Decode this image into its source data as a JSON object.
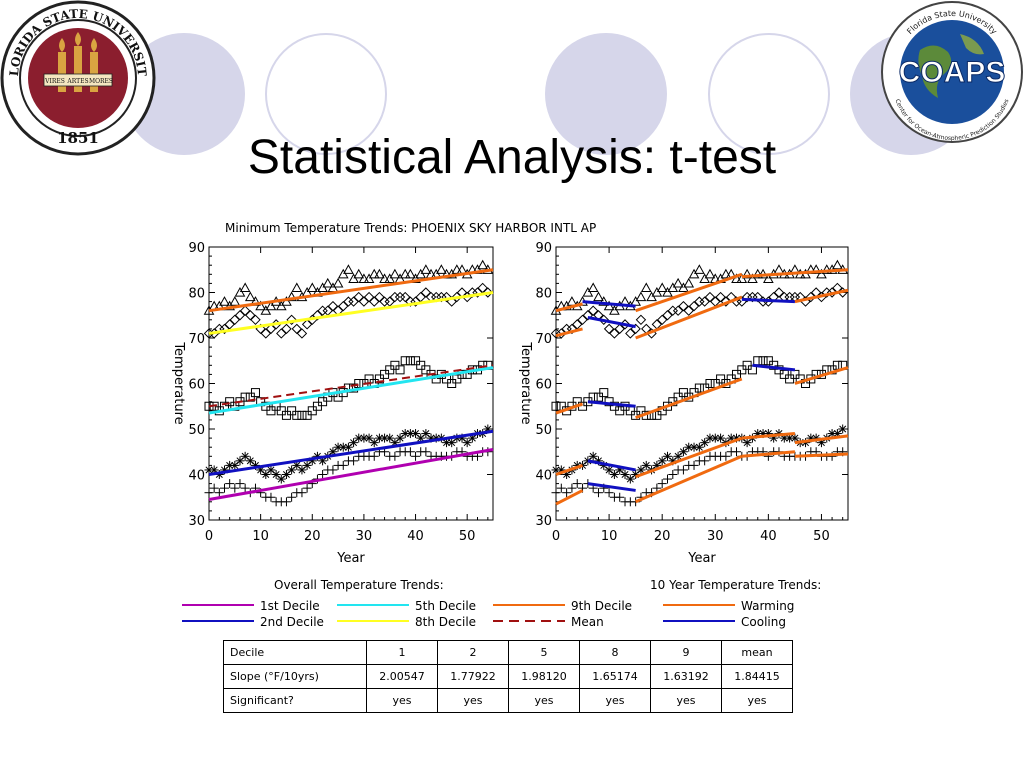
{
  "slide": {
    "title": "Statistical Analysis: t-test"
  },
  "logos": {
    "fsu": {
      "top_text": "FLORIDA STATE UNIVERSITY",
      "year": "1851",
      "motto": [
        "VIRES",
        "ARTES",
        "MORES"
      ]
    },
    "coaps": {
      "name": "COAPS",
      "ring_top": "Florida State University",
      "ring_bottom": "Center for Ocean-Atmospheric Prediction Studies"
    }
  },
  "figure_title": "Minimum Temperature Trends: PHOENIX SKY HARBOR INTL AP",
  "colors": {
    "deep": "#1a1aff",
    "first": "#b000b0",
    "second": "#1010c0",
    "fifth": "#22e5f0",
    "eighth": "#ffff22",
    "ninth": "#f06a10",
    "mean": "#a01010",
    "warming": "#f06a10",
    "cooling": "#1010c0",
    "accent_circle": "#d6d6ea"
  },
  "chart_data": [
    {
      "type": "scatter",
      "panel": "Overall Temperature Trends",
      "xlabel": "Year",
      "ylabel": "Temperature",
      "xlim": [
        0,
        55
      ],
      "ylim": [
        30,
        90
      ],
      "xticks": [
        "0",
        "10",
        "20",
        "30",
        "40",
        "50"
      ],
      "yticks": [
        "30",
        "40",
        "50",
        "60",
        "70",
        "80",
        "90"
      ],
      "grid": false,
      "series": [
        {
          "name": "9th Decile",
          "marker": "triangle",
          "values": [
            76,
            77,
            77,
            78,
            77,
            78,
            80,
            81,
            79,
            78,
            77,
            76,
            77,
            78,
            77,
            78,
            79,
            81,
            79,
            80,
            81,
            80,
            81,
            82,
            81,
            82,
            84,
            85,
            83,
            84,
            83,
            83,
            84,
            84,
            83,
            83,
            84,
            83,
            84,
            84,
            83,
            84,
            85,
            84,
            84,
            85,
            84,
            84,
            85,
            85,
            84,
            85,
            85,
            86,
            85
          ],
          "trend": {
            "color": "ninth",
            "from": [
              0,
              76
            ],
            "to": [
              55,
              85
            ]
          }
        },
        {
          "name": "8th Decile",
          "marker": "diamond",
          "values": [
            71,
            71,
            72,
            72,
            73,
            74,
            75,
            76,
            75,
            74,
            72,
            71,
            72,
            73,
            71,
            72,
            74,
            72,
            71,
            73,
            74,
            75,
            76,
            76,
            77,
            76,
            77,
            78,
            78,
            79,
            78,
            79,
            78,
            79,
            78,
            78,
            79,
            79,
            79,
            78,
            78,
            79,
            80,
            79,
            79,
            79,
            79,
            78,
            79,
            80,
            79,
            80,
            80,
            81,
            80
          ],
          "trend": {
            "color": "eighth",
            "from": [
              0,
              71
            ],
            "to": [
              55,
              80
            ]
          }
        },
        {
          "name": "5th Decile",
          "marker": "square",
          "values": [
            55,
            55,
            54,
            55,
            56,
            55,
            56,
            57,
            57,
            58,
            56,
            55,
            54,
            55,
            54,
            53,
            54,
            53,
            53,
            53,
            54,
            55,
            56,
            57,
            58,
            57,
            58,
            59,
            59,
            60,
            60,
            61,
            60,
            61,
            62,
            63,
            64,
            63,
            65,
            65,
            65,
            64,
            63,
            62,
            61,
            62,
            61,
            60,
            61,
            62,
            62,
            63,
            63,
            64,
            64
          ],
          "trend": {
            "color": "fifth",
            "from": [
              0,
              53.5
            ],
            "to": [
              55,
              63.5
            ]
          }
        },
        {
          "name": "2nd Decile",
          "marker": "asterisk",
          "values": [
            41,
            41,
            40,
            41,
            42,
            42,
            43,
            44,
            43,
            42,
            41,
            40,
            41,
            40,
            39,
            40,
            41,
            42,
            41,
            42,
            43,
            44,
            43,
            44,
            45,
            46,
            46,
            46,
            47,
            48,
            48,
            48,
            47,
            48,
            48,
            48,
            47,
            48,
            49,
            49,
            49,
            48,
            49,
            48,
            48,
            48,
            47,
            47,
            48,
            48,
            47,
            48,
            49,
            49,
            50
          ],
          "trend": {
            "color": "second",
            "from": [
              0,
              40
            ],
            "to": [
              55,
              49.5
            ]
          }
        },
        {
          "name": "1st Decile",
          "marker": "plus",
          "values": [
            36,
            37,
            36,
            37,
            38,
            37,
            38,
            37,
            36,
            37,
            36,
            35,
            35,
            34,
            34,
            34,
            35,
            36,
            36,
            37,
            38,
            39,
            40,
            41,
            41,
            42,
            42,
            43,
            43,
            44,
            44,
            44,
            44,
            45,
            45,
            44,
            44,
            45,
            45,
            45,
            44,
            45,
            45,
            44,
            44,
            44,
            44,
            44,
            45,
            45,
            44,
            44,
            44,
            45,
            45
          ],
          "trend": {
            "color": "first",
            "from": [
              0,
              34.5
            ],
            "to": [
              55,
              45.5
            ]
          }
        }
      ],
      "mean_trend": {
        "from": [
          0,
          55
        ],
        "to": [
          55,
          64
        ]
      }
    },
    {
      "type": "scatter",
      "panel": "10 Year Temperature Trends",
      "xlabel": "Year",
      "ylabel": "Temperature",
      "xlim": [
        0,
        55
      ],
      "ylim": [
        30,
        90
      ],
      "xticks": [
        "0",
        "10",
        "20",
        "30",
        "40",
        "50"
      ],
      "yticks": [
        "30",
        "40",
        "50",
        "60",
        "70",
        "80",
        "90"
      ],
      "grid": false,
      "segments": [
        {
          "type": "warming",
          "from": [
            0,
            76
          ],
          "to": [
            5,
            77.5
          ]
        },
        {
          "type": "cooling",
          "from": [
            5,
            78
          ],
          "to": [
            15,
            77
          ]
        },
        {
          "type": "warming",
          "from": [
            15,
            76
          ],
          "to": [
            35,
            84
          ]
        },
        {
          "type": "warming",
          "from": [
            35,
            83.5
          ],
          "to": [
            55,
            85
          ]
        },
        {
          "type": "warming",
          "from": [
            0,
            70.5
          ],
          "to": [
            5,
            72
          ]
        },
        {
          "type": "cooling",
          "from": [
            6,
            74.5
          ],
          "to": [
            15,
            72.5
          ]
        },
        {
          "type": "warming",
          "from": [
            15,
            70
          ],
          "to": [
            35,
            79
          ]
        },
        {
          "type": "cooling",
          "from": [
            35,
            78.5
          ],
          "to": [
            45,
            78
          ]
        },
        {
          "type": "warming",
          "from": [
            45,
            78
          ],
          "to": [
            55,
            80.5
          ]
        },
        {
          "type": "warming",
          "from": [
            0,
            53.5
          ],
          "to": [
            5,
            55.5
          ]
        },
        {
          "type": "cooling",
          "from": [
            6,
            56
          ],
          "to": [
            15,
            55
          ]
        },
        {
          "type": "warming",
          "from": [
            15,
            52.5
          ],
          "to": [
            35,
            61
          ]
        },
        {
          "type": "cooling",
          "from": [
            37,
            64
          ],
          "to": [
            45,
            63
          ]
        },
        {
          "type": "warming",
          "from": [
            45,
            60
          ],
          "to": [
            55,
            63.5
          ]
        },
        {
          "type": "warming",
          "from": [
            0,
            40
          ],
          "to": [
            5,
            42
          ]
        },
        {
          "type": "cooling",
          "from": [
            6,
            43
          ],
          "to": [
            15,
            41
          ]
        },
        {
          "type": "warming",
          "from": [
            15,
            39.5
          ],
          "to": [
            35,
            48
          ]
        },
        {
          "type": "warming",
          "from": [
            35,
            48
          ],
          "to": [
            45,
            49
          ]
        },
        {
          "type": "warming",
          "from": [
            45,
            47
          ],
          "to": [
            55,
            48.5
          ]
        },
        {
          "type": "warming",
          "from": [
            0,
            33.5
          ],
          "to": [
            5,
            36.5
          ]
        },
        {
          "type": "cooling",
          "from": [
            6,
            38
          ],
          "to": [
            15,
            36.5
          ]
        },
        {
          "type": "warming",
          "from": [
            15,
            34
          ],
          "to": [
            35,
            44
          ]
        },
        {
          "type": "warming",
          "from": [
            35,
            44
          ],
          "to": [
            45,
            45
          ]
        },
        {
          "type": "warming",
          "from": [
            45,
            44
          ],
          "to": [
            55,
            44.5
          ]
        }
      ]
    }
  ],
  "legend": {
    "overall_title": "Overall Temperature Trends:",
    "ten_year_title": "10 Year Temperature Trends:",
    "items": [
      {
        "label": "1st Decile",
        "color": "#b000b0",
        "dash": false
      },
      {
        "label": "5th Decile",
        "color": "#22e5f0",
        "dash": false
      },
      {
        "label": "9th Decile",
        "color": "#f06a10",
        "dash": false
      },
      {
        "label": "Warming",
        "color": "#f06a10",
        "dash": false
      },
      {
        "label": "2nd Decile",
        "color": "#1010c0",
        "dash": false
      },
      {
        "label": "8th Decile",
        "color": "#ffff22",
        "dash": false
      },
      {
        "label": "Mean",
        "color": "#a01010",
        "dash": true
      },
      {
        "label": "Cooling",
        "color": "#1010c0",
        "dash": false
      }
    ]
  },
  "table": {
    "rows": [
      [
        "Decile",
        "1",
        "2",
        "5",
        "8",
        "9",
        "mean"
      ],
      [
        "Slope (°F/10yrs)",
        "2.00547",
        "1.77922",
        "1.98120",
        "1.65174",
        "1.63192",
        "1.84415"
      ],
      [
        "Significant?",
        "yes",
        "yes",
        "yes",
        "yes",
        "yes",
        "yes"
      ]
    ]
  }
}
